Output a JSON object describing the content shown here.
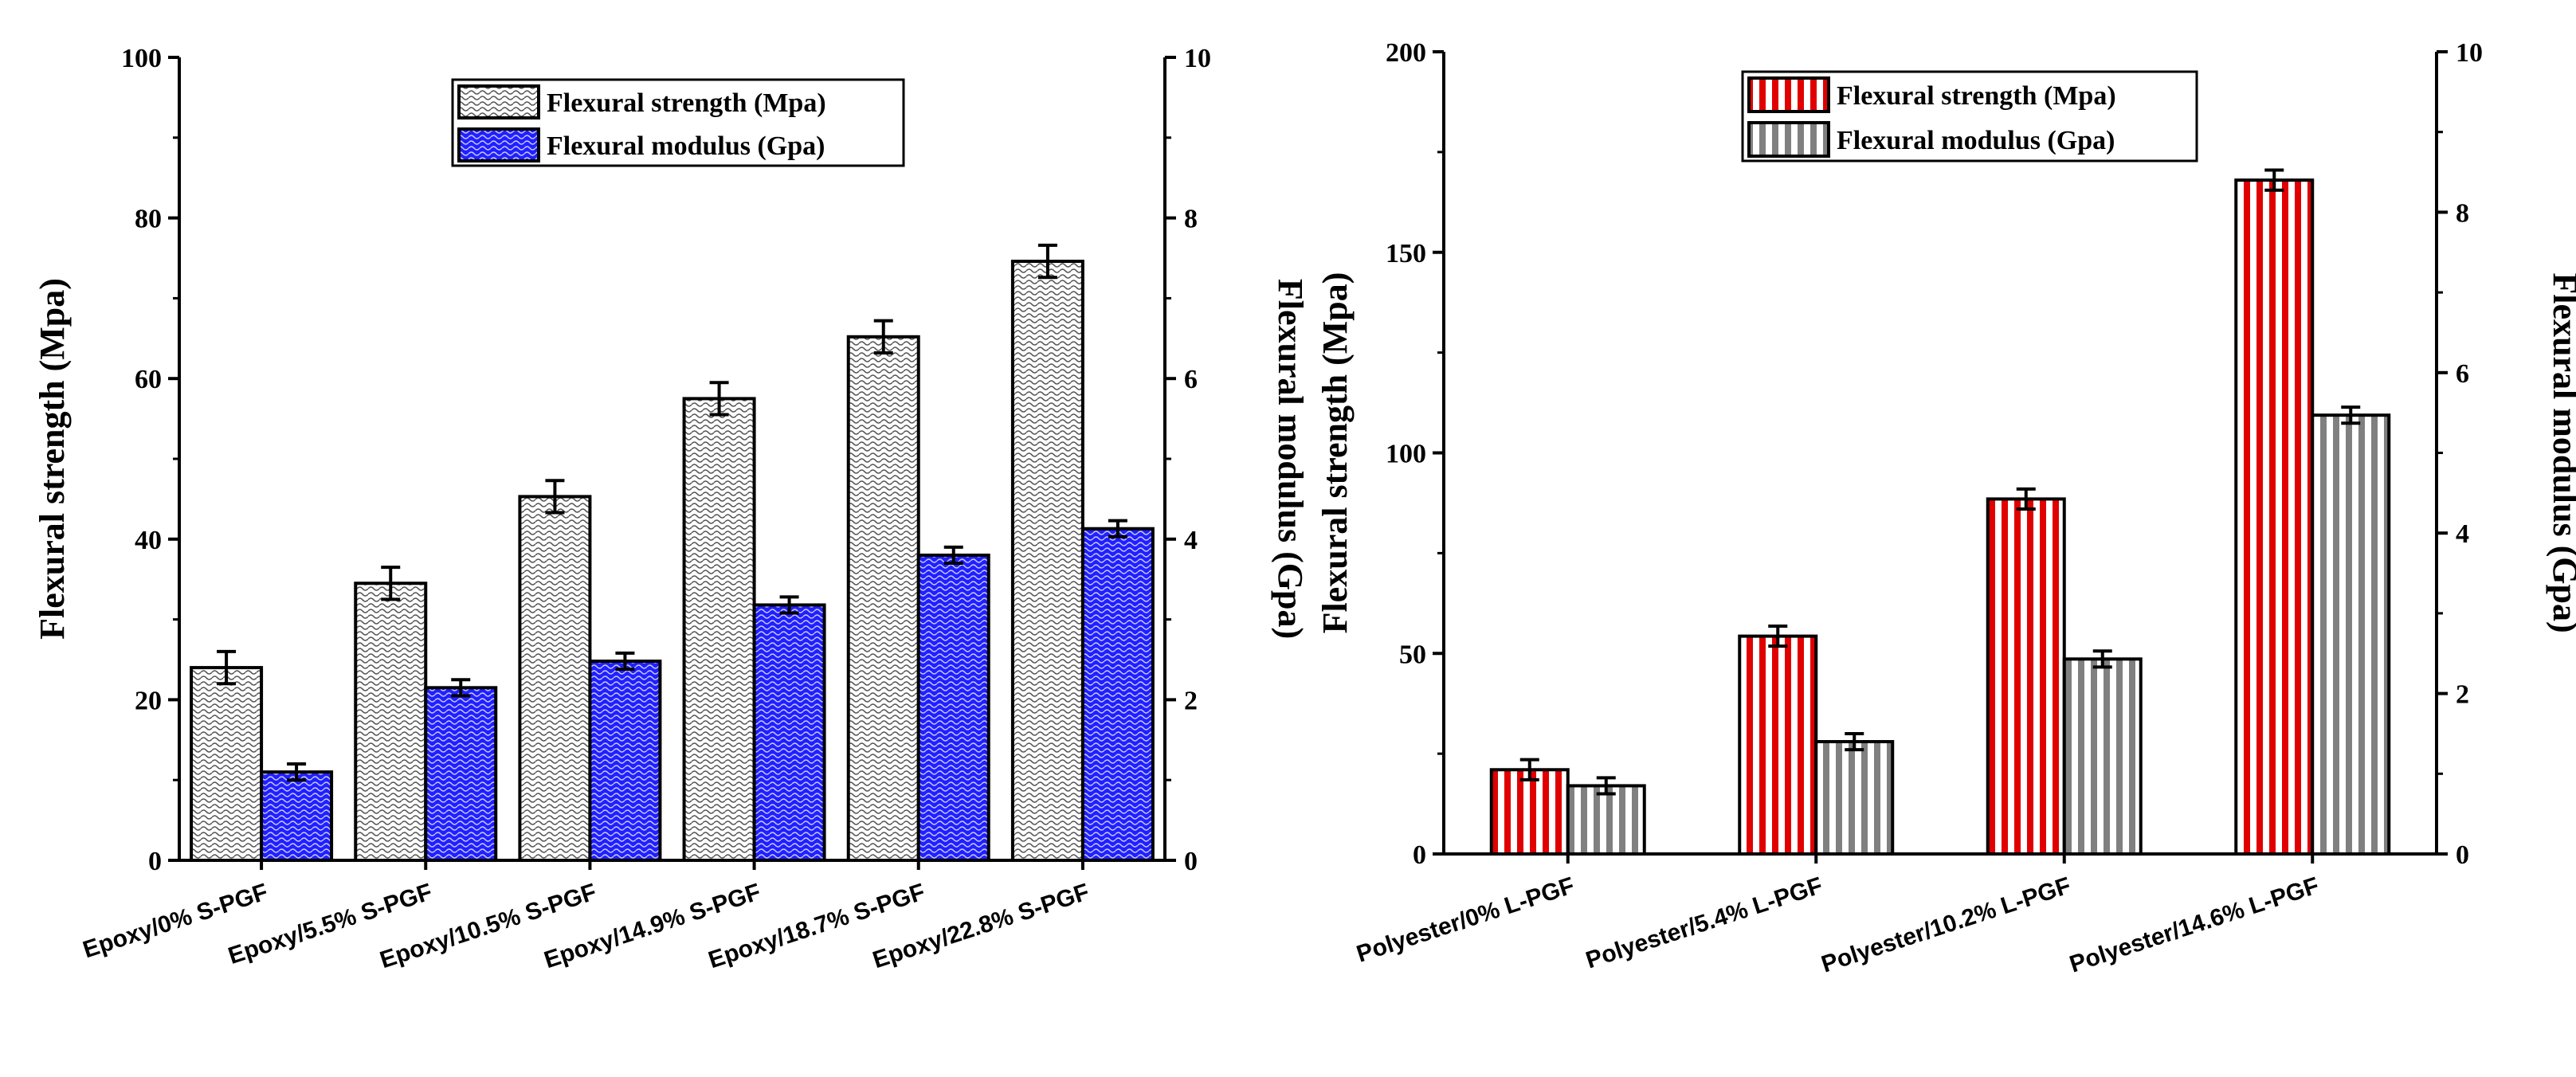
{
  "chart_data": [
    {
      "type": "bar",
      "categories": [
        "Epoxy/0% S-PGF",
        "Epoxy/5.5% S-PGF",
        "Epoxy/10.5% S-PGF",
        "Epoxy/14.9% S-PGF",
        "Epoxy/18.7% S-PGF",
        "Epoxy/22.8% S-PGF"
      ],
      "series": [
        {
          "name": "Flexural strength  (Mpa)",
          "axis": "left",
          "values": [
            24,
            34.5,
            45.3,
            57.5,
            65.2,
            74.6
          ],
          "errors": [
            2.0,
            2.0,
            2.0,
            2.0,
            2.0,
            2.0
          ],
          "color": "#ffffff",
          "pattern": "dense-hatch"
        },
        {
          "name": "Flexural modulus (Gpa)",
          "axis": "right",
          "values": [
            1.1,
            2.15,
            2.48,
            3.18,
            3.8,
            4.13
          ],
          "errors": [
            0.1,
            0.1,
            0.1,
            0.1,
            0.1,
            0.1
          ],
          "color": "#1a1aff",
          "pattern": "blue-hatch"
        }
      ],
      "ylabel": "Flexural strength  (Mpa)",
      "y2label": "Flexural modulus (Gpa)",
      "ylim": [
        0,
        100
      ],
      "y2lim": [
        0,
        10
      ],
      "yticks": [
        "0",
        "20",
        "40",
        "60",
        "80",
        "100"
      ],
      "y2ticks": [
        "0",
        "2",
        "4",
        "6",
        "8",
        "10"
      ],
      "grid": false,
      "legend": "top-center"
    },
    {
      "type": "bar",
      "categories": [
        "Polyester/0% L-PGF",
        "Polyester/5.4% L-PGF",
        "Polyester/10.2% L-PGF",
        "Polyester/14.6% L-PGF"
      ],
      "series": [
        {
          "name": "Flexural strength  (Mpa)",
          "axis": "left",
          "values": [
            21,
            54.3,
            88.5,
            168
          ],
          "errors": [
            2.5,
            2.5,
            2.5,
            2.5
          ],
          "color": "#e00000",
          "pattern": "red-vertical-stripes"
        },
        {
          "name": "Flexural modulus (Gpa)",
          "axis": "right",
          "values": [
            0.85,
            1.4,
            2.43,
            5.47
          ],
          "errors": [
            0.1,
            0.1,
            0.1,
            0.1
          ],
          "color": "#808080",
          "pattern": "gray-vertical-stripes"
        }
      ],
      "ylabel": "Flexural strength  (Mpa)",
      "y2label": "Flexural modulus (Gpa)",
      "ylim": [
        0,
        200
      ],
      "y2lim": [
        0,
        10
      ],
      "yticks": [
        "0",
        "50",
        "100",
        "150",
        "200"
      ],
      "y2ticks": [
        "0",
        "2",
        "4",
        "6",
        "8",
        "10"
      ],
      "grid": false,
      "legend": "top-center"
    }
  ]
}
